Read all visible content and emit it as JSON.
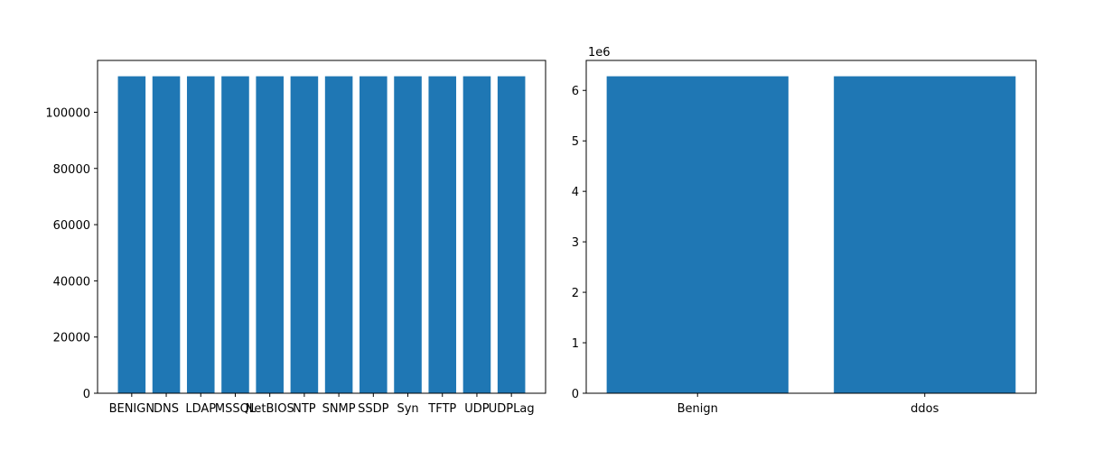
{
  "chart_data": [
    {
      "type": "bar",
      "categories": [
        "BENIGN",
        "DNS",
        "LDAP",
        "MSSQL",
        "NetBIOS",
        "NTP",
        "SNMP",
        "SSDP",
        "Syn",
        "TFTP",
        "UDP",
        "UDPLag"
      ],
      "values": [
        112800,
        112800,
        112800,
        112800,
        112800,
        112800,
        112800,
        112800,
        112800,
        112800,
        112800,
        112800
      ],
      "yticks": [
        0,
        20000,
        40000,
        60000,
        80000,
        100000
      ],
      "ytick_labels": [
        "0",
        "20000",
        "40000",
        "60000",
        "80000",
        "100000"
      ],
      "ylim": [
        0,
        118440
      ],
      "offset_label": "",
      "color": "#1f77b4",
      "grid": false
    },
    {
      "type": "bar",
      "categories": [
        "Benign",
        "ddos"
      ],
      "values": [
        6280000,
        6280000
      ],
      "yticks": [
        0,
        1000000,
        2000000,
        3000000,
        4000000,
        5000000,
        6000000
      ],
      "ytick_labels": [
        "0",
        "1",
        "2",
        "3",
        "4",
        "5",
        "6"
      ],
      "ylim": [
        0,
        6594000
      ],
      "offset_label": "1e6",
      "color": "#1f77b4",
      "grid": false
    }
  ]
}
